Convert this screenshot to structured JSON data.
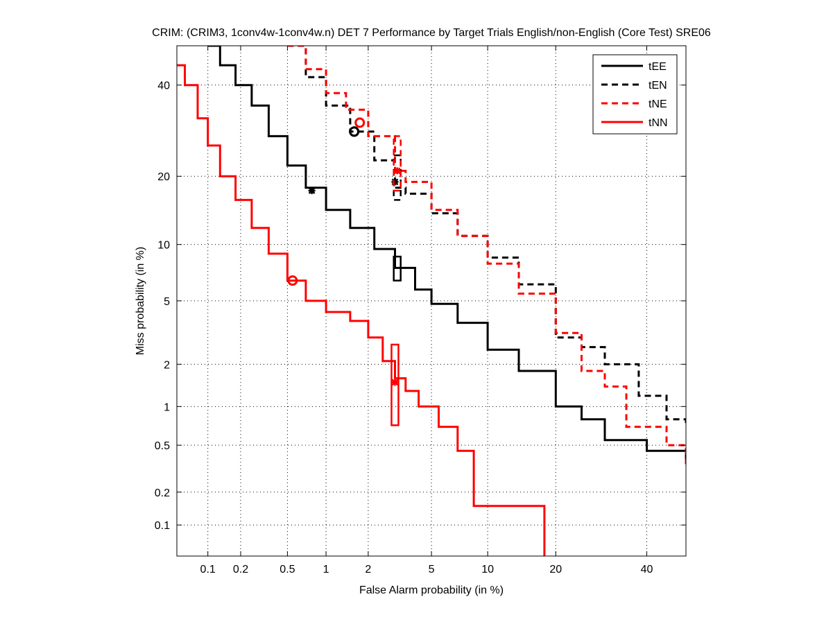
{
  "chart_data": {
    "type": "line",
    "title": "CRIM: (CRIM3, 1conv4w-1conv4w.n) DET 7 Performance by Target Trials English/non-English (Core Test) SRE06",
    "xlabel": "False Alarm probability (in %)",
    "ylabel": "Miss probability (in %)",
    "x_scale": "probit",
    "y_scale": "probit",
    "xlim": [
      0.05,
      50
    ],
    "ylim": [
      0.05,
      50
    ],
    "x_ticks": [
      0.1,
      0.2,
      0.5,
      1,
      2,
      5,
      10,
      20,
      40
    ],
    "x_tick_labels": [
      "0.1",
      "0.2",
      "0.5",
      "1",
      "2",
      "5",
      "10",
      "20",
      "40"
    ],
    "y_ticks": [
      0.1,
      0.2,
      0.5,
      1,
      2,
      5,
      10,
      20,
      40
    ],
    "y_tick_labels": [
      "0.1",
      "0.2",
      "0.5",
      "1",
      "2",
      "5",
      "10",
      "20",
      "40"
    ],
    "grid": true,
    "legend_position": "top-right",
    "series": [
      {
        "name": "tEE",
        "color": "#000000",
        "dash": "solid",
        "x": [
          0.1,
          0.13,
          0.18,
          0.25,
          0.35,
          0.5,
          0.7,
          1.0,
          1.5,
          2.2,
          3.0,
          4.0,
          5.0,
          7.0,
          10,
          14,
          20,
          25,
          30,
          40,
          50
        ],
        "y": [
          50,
          45,
          40,
          35,
          28,
          22,
          18,
          14.5,
          12,
          9.5,
          7.6,
          5.8,
          4.8,
          3.7,
          2.5,
          1.8,
          1.0,
          0.8,
          0.55,
          0.45,
          0.35
        ],
        "min_dcf": [
          0.78,
          17.5
        ],
        "actual_dcf": [
          1.6,
          29
        ],
        "cost_box": [
          3.1,
          6.5,
          8.7
        ]
      },
      {
        "name": "tEN",
        "color": "#000000",
        "dash": "dashed",
        "x": [
          0.5,
          0.7,
          1.0,
          1.5,
          2.2,
          3.0,
          3.5,
          5.0,
          7.0,
          10,
          14,
          20,
          25,
          30,
          38,
          45,
          50
        ],
        "y": [
          50,
          42,
          35,
          29,
          23,
          18,
          17,
          14,
          11,
          8.6,
          6.2,
          3.0,
          2.6,
          2.0,
          1.2,
          0.8,
          0.75
        ],
        "min_dcf": [
          3.0,
          19
        ],
        "actual_dcf": [
          1.6,
          29
        ],
        "cost_box": [
          3.1,
          16,
          24
        ]
      },
      {
        "name": "tNE",
        "color": "#ff0000",
        "dash": "dashed",
        "x": [
          0.5,
          0.7,
          1.0,
          1.4,
          2.0,
          3.0,
          3.5,
          5.0,
          7.0,
          10,
          14,
          20,
          25,
          30,
          35,
          45,
          50
        ],
        "y": [
          50,
          44,
          38,
          34,
          28,
          21,
          19,
          14.5,
          11,
          8.0,
          5.5,
          3.2,
          1.8,
          1.4,
          0.7,
          0.5,
          0.35
        ],
        "min_dcf": [
          3.1,
          21
        ],
        "actual_dcf": [
          1.75,
          31
        ],
        "cost_box": [
          3.1,
          17.5,
          28
        ]
      },
      {
        "name": "tNN",
        "color": "#ff0000",
        "dash": "solid",
        "x": [
          0.05,
          0.06,
          0.08,
          0.1,
          0.13,
          0.18,
          0.25,
          0.35,
          0.5,
          0.7,
          1.0,
          1.5,
          2.0,
          2.5,
          3.0,
          3.5,
          4.2,
          5.5,
          7.0,
          8.5,
          8.51,
          12,
          18,
          18.01
        ],
        "y": [
          45,
          40,
          32,
          26,
          20,
          16,
          12,
          9,
          6.5,
          5.0,
          4.3,
          3.8,
          3.0,
          2.1,
          1.6,
          1.3,
          1.0,
          0.7,
          0.45,
          0.45,
          0.15,
          0.15,
          0.15,
          0.05
        ],
        "min_dcf": [
          3.0,
          1.5
        ],
        "actual_dcf": [
          0.55,
          6.5
        ],
        "cost_box": [
          3.0,
          0.72,
          2.7
        ]
      }
    ]
  }
}
